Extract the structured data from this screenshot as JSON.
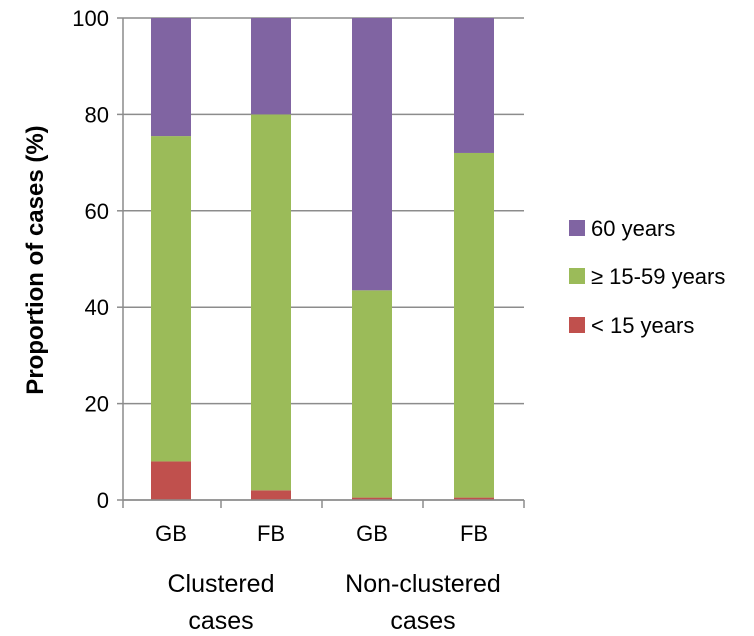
{
  "chart_data": {
    "type": "bar",
    "stacked": true,
    "title": "",
    "xlabel": "",
    "ylabel": "Proportion of cases (%)",
    "ylim": [
      0,
      100
    ],
    "yticks": [
      0,
      20,
      40,
      60,
      80,
      100
    ],
    "grid": true,
    "legend_position": "right",
    "categories": [
      "GB",
      "FB",
      "GB",
      "FB"
    ],
    "groups": [
      {
        "label_lines": [
          "Clustered",
          "cases"
        ],
        "categories": [
          0,
          1
        ]
      },
      {
        "label_lines": [
          "Non-clustered",
          "cases"
        ],
        "categories": [
          2,
          3
        ]
      }
    ],
    "series": [
      {
        "name": "< 15 years",
        "color": "#c0504d",
        "values": [
          8,
          2,
          0.5,
          0.5
        ]
      },
      {
        "name": "≥ 15-59 years",
        "color": "#9bbb59",
        "values": [
          67.5,
          78,
          43,
          71.5
        ]
      },
      {
        "name": "60 years",
        "color": "#8064a2",
        "values": [
          24.5,
          20,
          56.5,
          28
        ]
      }
    ],
    "legend_order": [
      2,
      1,
      0
    ]
  }
}
